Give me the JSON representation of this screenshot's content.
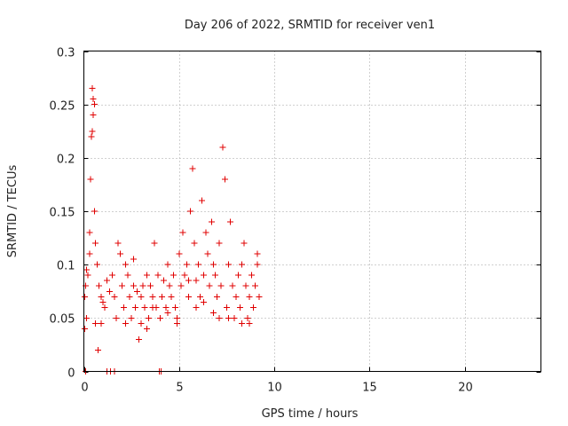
{
  "chart_data": {
    "type": "scatter",
    "title": "Day 206 of 2022, SRMTID for receiver ven1",
    "xlabel": "GPS time / hours",
    "ylabel": "SRMTID / TECUs",
    "xlim": [
      0,
      24
    ],
    "ylim": [
      0,
      0.3
    ],
    "xticks": [
      0,
      5,
      10,
      15,
      20
    ],
    "xtick_labels": [
      "0",
      "5",
      "10",
      "15",
      "20"
    ],
    "yticks": [
      0,
      0.05,
      0.1,
      0.15,
      0.2,
      0.25,
      0.3
    ],
    "ytick_labels": [
      "0",
      "0.05",
      "0.1",
      "0.15",
      "0.2",
      "0.25",
      "0.3"
    ],
    "grid": true,
    "marker": "+",
    "series": [
      {
        "name": "SRMTID",
        "color": "#e00000",
        "x": [
          0.05,
          0.1,
          0.15,
          0.2,
          0.3,
          0.35,
          0.4,
          0.45,
          0.5,
          0.55,
          0.6,
          0.7,
          0.8,
          0.9,
          1.0,
          1.1,
          1.2,
          1.35,
          1.5,
          1.6,
          1.7,
          1.8,
          1.9,
          2.0,
          2.1,
          2.2,
          2.3,
          2.4,
          2.5,
          2.6,
          2.7,
          2.8,
          2.9,
          3.0,
          3.1,
          3.2,
          3.3,
          3.4,
          3.5,
          3.6,
          3.7,
          3.8,
          3.9,
          4.0,
          4.1,
          4.2,
          4.3,
          4.4,
          4.5,
          4.6,
          4.7,
          4.8,
          4.9,
          5.0,
          5.1,
          5.2,
          5.3,
          5.4,
          5.5,
          5.6,
          5.7,
          5.8,
          5.9,
          6.0,
          6.1,
          6.2,
          6.3,
          6.4,
          6.5,
          6.6,
          6.7,
          6.8,
          6.9,
          7.0,
          7.1,
          7.2,
          7.3,
          7.4,
          7.5,
          7.6,
          7.7,
          7.8,
          7.9,
          8.0,
          8.1,
          8.2,
          8.3,
          8.4,
          8.5,
          8.6,
          8.7,
          8.8,
          8.9,
          9.0,
          9.1,
          9.2,
          0.1,
          0.45,
          0.5,
          0.55,
          0.05,
          1.2,
          1.4,
          1.6,
          3.95,
          4.05,
          0.15,
          0.3,
          0.6,
          0.75,
          0.9,
          2.2,
          2.6,
          3.0,
          3.3,
          3.6,
          4.4,
          4.9,
          5.5,
          5.9,
          6.3,
          6.8,
          7.1,
          7.6,
          8.3,
          8.7,
          9.1
        ],
        "y": [
          0.07,
          0.08,
          0.05,
          0.09,
          0.11,
          0.18,
          0.22,
          0.265,
          0.24,
          0.15,
          0.12,
          0.1,
          0.08,
          0.07,
          0.065,
          0.06,
          0.085,
          0.075,
          0.09,
          0.07,
          0.05,
          0.12,
          0.11,
          0.08,
          0.06,
          0.1,
          0.09,
          0.07,
          0.05,
          0.08,
          0.06,
          0.075,
          0.03,
          0.07,
          0.08,
          0.06,
          0.09,
          0.05,
          0.08,
          0.07,
          0.12,
          0.06,
          0.09,
          0.05,
          0.07,
          0.085,
          0.06,
          0.1,
          0.08,
          0.07,
          0.09,
          0.06,
          0.05,
          0.11,
          0.08,
          0.13,
          0.09,
          0.1,
          0.07,
          0.15,
          0.19,
          0.12,
          0.085,
          0.1,
          0.07,
          0.16,
          0.09,
          0.13,
          0.11,
          0.08,
          0.14,
          0.1,
          0.09,
          0.07,
          0.12,
          0.08,
          0.21,
          0.18,
          0.06,
          0.1,
          0.14,
          0.08,
          0.05,
          0.07,
          0.09,
          0.06,
          0.1,
          0.12,
          0.08,
          0.05,
          0.07,
          0.09,
          0.06,
          0.08,
          0.11,
          0.07,
          0.0,
          0.225,
          0.255,
          0.25,
          0.04,
          0.0,
          0.0,
          0.0,
          0.0,
          0.0,
          0.095,
          0.13,
          0.045,
          0.02,
          0.045,
          0.045,
          0.105,
          0.045,
          0.04,
          0.06,
          0.055,
          0.045,
          0.085,
          0.06,
          0.065,
          0.055,
          0.05,
          0.05,
          0.045,
          0.045,
          0.1
        ]
      }
    ]
  }
}
